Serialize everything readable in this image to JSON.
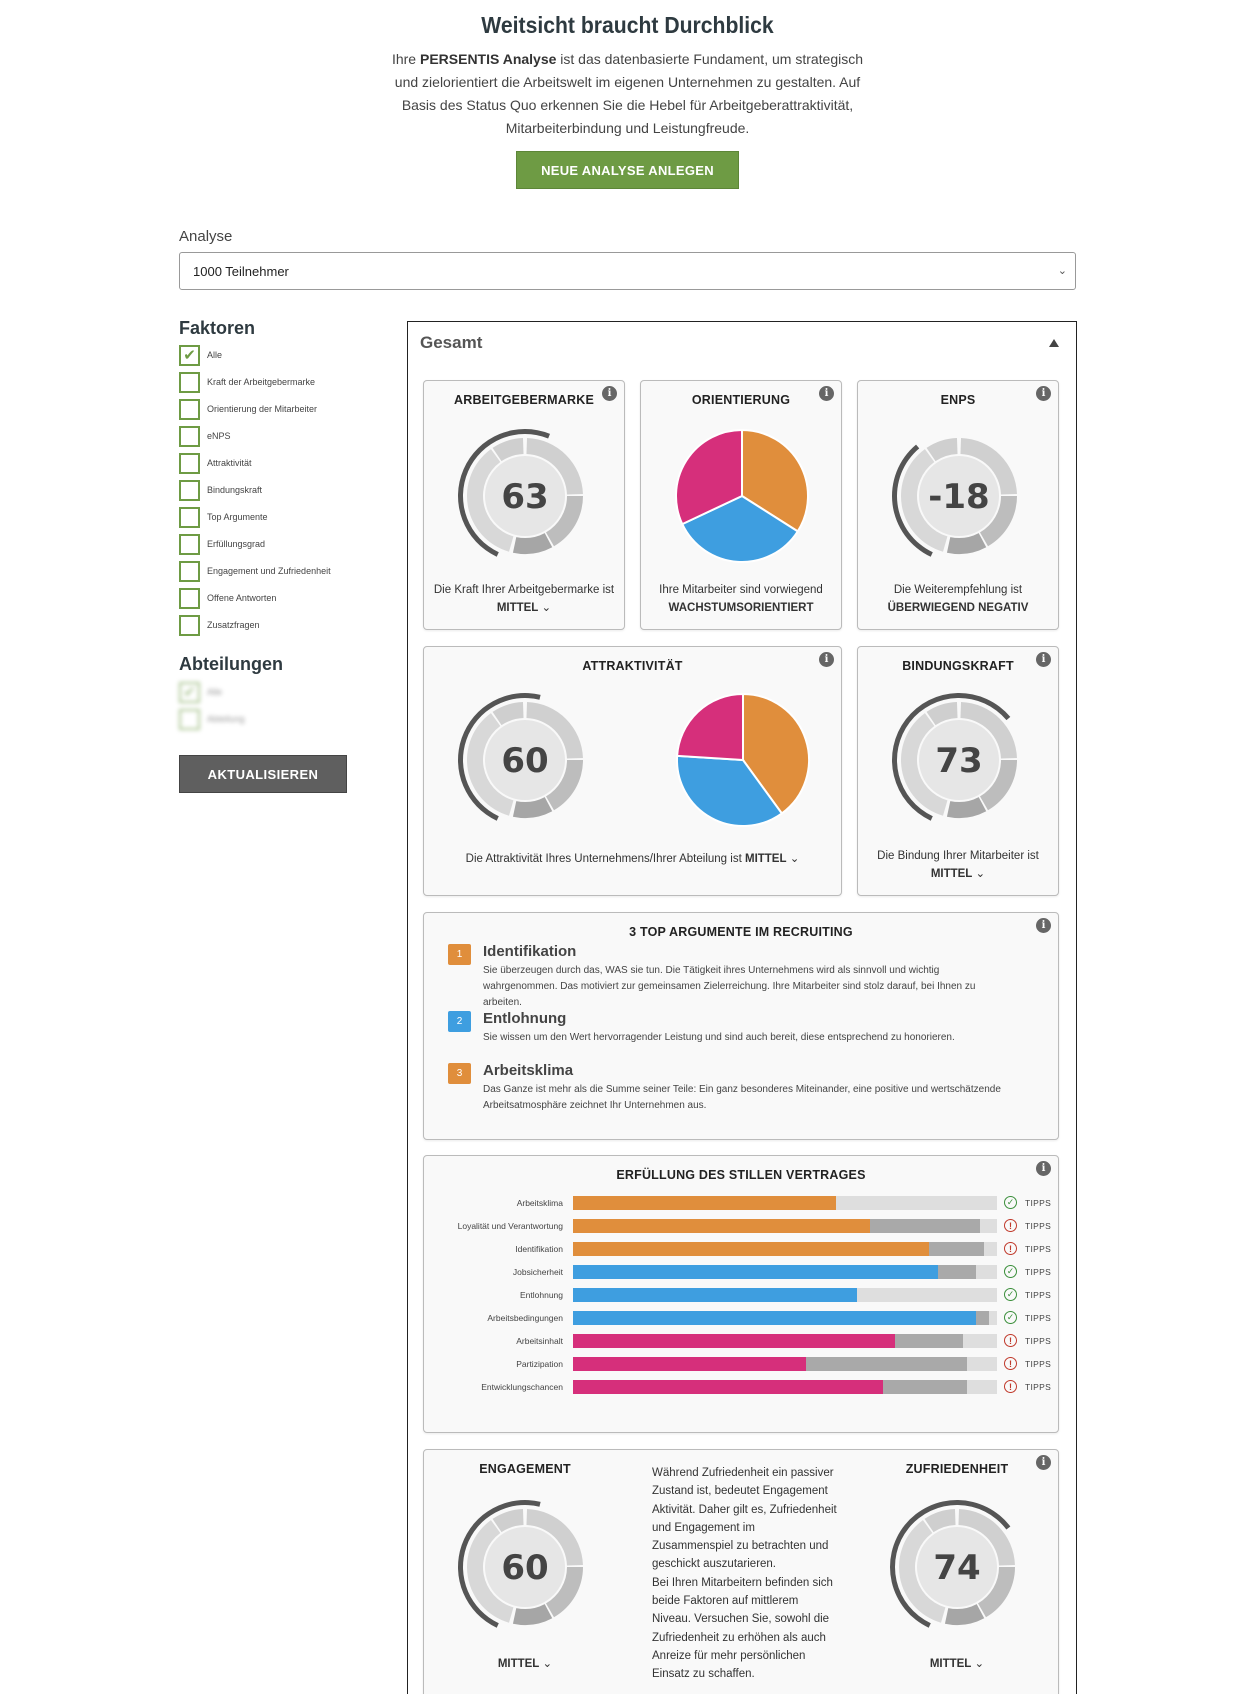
{
  "hero": {
    "title": "Weitsicht braucht Durchblick",
    "text_pre": "Ihre ",
    "text_brand": "PERSENTIS Analyse",
    "text_post": " ist das datenbasierte Fundament, um strategisch und zielorientiert die Arbeitswelt im eigenen Unternehmen zu gestalten. Auf Basis des Status Quo erkennen Sie die Hebel für Arbeitgeberattraktivität, Mitarbeiterbindung und Leistungfreude.",
    "button": "NEUE ANALYSE ANLEGEN"
  },
  "analyse": {
    "label": "Analyse",
    "selected": "1000 Teilnehmer"
  },
  "sidebar": {
    "faktoren_title": "Faktoren",
    "faktoren": [
      {
        "label": "Alle",
        "checked": true
      },
      {
        "label": "Kraft der Arbeitgebermarke",
        "checked": false
      },
      {
        "label": "Orientierung der Mitarbeiter",
        "checked": false
      },
      {
        "label": "eNPS",
        "checked": false
      },
      {
        "label": "Attraktivität",
        "checked": false
      },
      {
        "label": "Bindungskraft",
        "checked": false
      },
      {
        "label": "Top Argumente",
        "checked": false
      },
      {
        "label": "Erfüllungsgrad",
        "checked": false
      },
      {
        "label": "Engagement und Zufriedenheit",
        "checked": false
      },
      {
        "label": "Offene Antworten",
        "checked": false
      },
      {
        "label": "Zusatzfragen",
        "checked": false
      }
    ],
    "abteilungen_title": "Abteilungen",
    "abteilungen": [
      {
        "label": "Alle",
        "checked": true
      },
      {
        "label": "Abteilung",
        "checked": false
      }
    ],
    "update_button": "AKTUALISIEREN"
  },
  "panel": {
    "title": "Gesamt"
  },
  "colors": {
    "orange": "#e08e3c",
    "blue": "#3e9ee0",
    "magenta": "#d62f7b",
    "green": "#6e9b44"
  },
  "cards": {
    "arbeitgebermarke": {
      "title": "ARBEITGEBERMARKE",
      "value": "63",
      "level": 0.63,
      "caption": "Die Kraft Ihrer Arbeitgebermarke ist",
      "result": "MITTEL"
    },
    "orientierung": {
      "title": "ORIENTIERUNG",
      "caption": "Ihre Mitarbeiter sind vorwiegend",
      "result": "WACHSTUMSORIENTIERT",
      "slices": [
        {
          "color": "orange",
          "share": 0.34
        },
        {
          "color": "blue",
          "share": 0.34
        },
        {
          "color": "magenta",
          "share": 0.32
        }
      ]
    },
    "enps": {
      "title": "ENPS",
      "value": "-18",
      "level": 0.41,
      "caption": "Die Weiterempfehlung ist",
      "result": "ÜBERWIEGEND NEGATIV"
    },
    "attraktivitaet": {
      "title": "ATTRAKTIVITÄT",
      "value": "60",
      "level": 0.6,
      "caption": "Die Attraktivität Ihres Unternehmens/Ihrer Abteilung ist",
      "result": "MITTEL",
      "slices": [
        {
          "color": "orange",
          "share": 0.4
        },
        {
          "color": "blue",
          "share": 0.36
        },
        {
          "color": "magenta",
          "share": 0.24
        }
      ]
    },
    "bindungskraft": {
      "title": "BINDUNGSKRAFT",
      "value": "73",
      "level": 0.73,
      "caption": "Die Bindung Ihrer Mitarbeiter ist",
      "result": "MITTEL"
    }
  },
  "top_arguments": {
    "title": "3 TOP ARGUMENTE IM RECRUITING",
    "items": [
      {
        "num": "1",
        "color": "orange",
        "title": "Identifikation",
        "text": "Sie überzeugen durch das, WAS sie tun. Die Tätigkeit ihres Unternehmens wird als sinnvoll und wichtig wahrgenommen. Das motiviert zur gemeinsamen Zielerreichung. Ihre Mitarbeiter sind stolz darauf, bei Ihnen zu arbeiten."
      },
      {
        "num": "2",
        "color": "blue",
        "title": "Entlohnung",
        "text": "Sie wissen um den Wert hervorragender Leistung und sind auch bereit, diese entsprechend zu honorieren."
      },
      {
        "num": "3",
        "color": "orange",
        "title": "Arbeitsklima",
        "text": "Das Ganze ist mehr als die Summe seiner Teile: Ein ganz besonderes Miteinander, eine positive und wertschätzende Arbeitsatmosphäre zeichnet Ihr Unternehmen aus."
      }
    ]
  },
  "contract": {
    "title": "ERFÜLLUNG DES STILLEN VERTRAGES",
    "tips_label": "TIPPS",
    "rows": [
      {
        "label": "Arbeitsklima",
        "color": "orange",
        "fill": 0.62,
        "expected": 0.62,
        "status": "ok"
      },
      {
        "label": "Loyalität und Verantwortung",
        "color": "orange",
        "fill": 0.7,
        "expected": 0.96,
        "status": "warn"
      },
      {
        "label": "Identifikation",
        "color": "orange",
        "fill": 0.84,
        "expected": 0.97,
        "status": "warn"
      },
      {
        "label": "Jobsicherheit",
        "color": "blue",
        "fill": 0.86,
        "expected": 0.95,
        "status": "ok"
      },
      {
        "label": "Entlohnung",
        "color": "blue",
        "fill": 0.67,
        "expected": 0.67,
        "status": "ok"
      },
      {
        "label": "Arbeitsbedingungen",
        "color": "blue",
        "fill": 0.95,
        "expected": 0.98,
        "status": "ok"
      },
      {
        "label": "Arbeitsinhalt",
        "color": "magenta",
        "fill": 0.76,
        "expected": 0.92,
        "status": "warn"
      },
      {
        "label": "Partizipation",
        "color": "magenta",
        "fill": 0.55,
        "expected": 0.93,
        "status": "warn"
      },
      {
        "label": "Entwicklungschancen",
        "color": "magenta",
        "fill": 0.73,
        "expected": 0.93,
        "status": "warn"
      }
    ]
  },
  "engagement": {
    "eng_title": "ENGAGEMENT",
    "eng_value": "60",
    "eng_level": 0.6,
    "eng_result": "MITTEL",
    "zuf_title": "ZUFRIEDENHEIT",
    "zuf_value": "74",
    "zuf_level": 0.74,
    "zuf_result": "MITTEL",
    "text": "Während Zufriedenheit ein passiver Zustand ist, bedeutet Engagement Aktivität. Daher gilt es, Zufriedenheit und Engagement im Zusammenspiel zu betrachten und geschickt auszutarieren.\nBei Ihren Mitarbeitern befinden sich beide Faktoren auf mittlerem Niveau. Versuchen Sie, sowohl die Zufriedenheit zu erhöhen als auch Anreize für mehr persönlichen Einsatz zu schaffen."
  }
}
